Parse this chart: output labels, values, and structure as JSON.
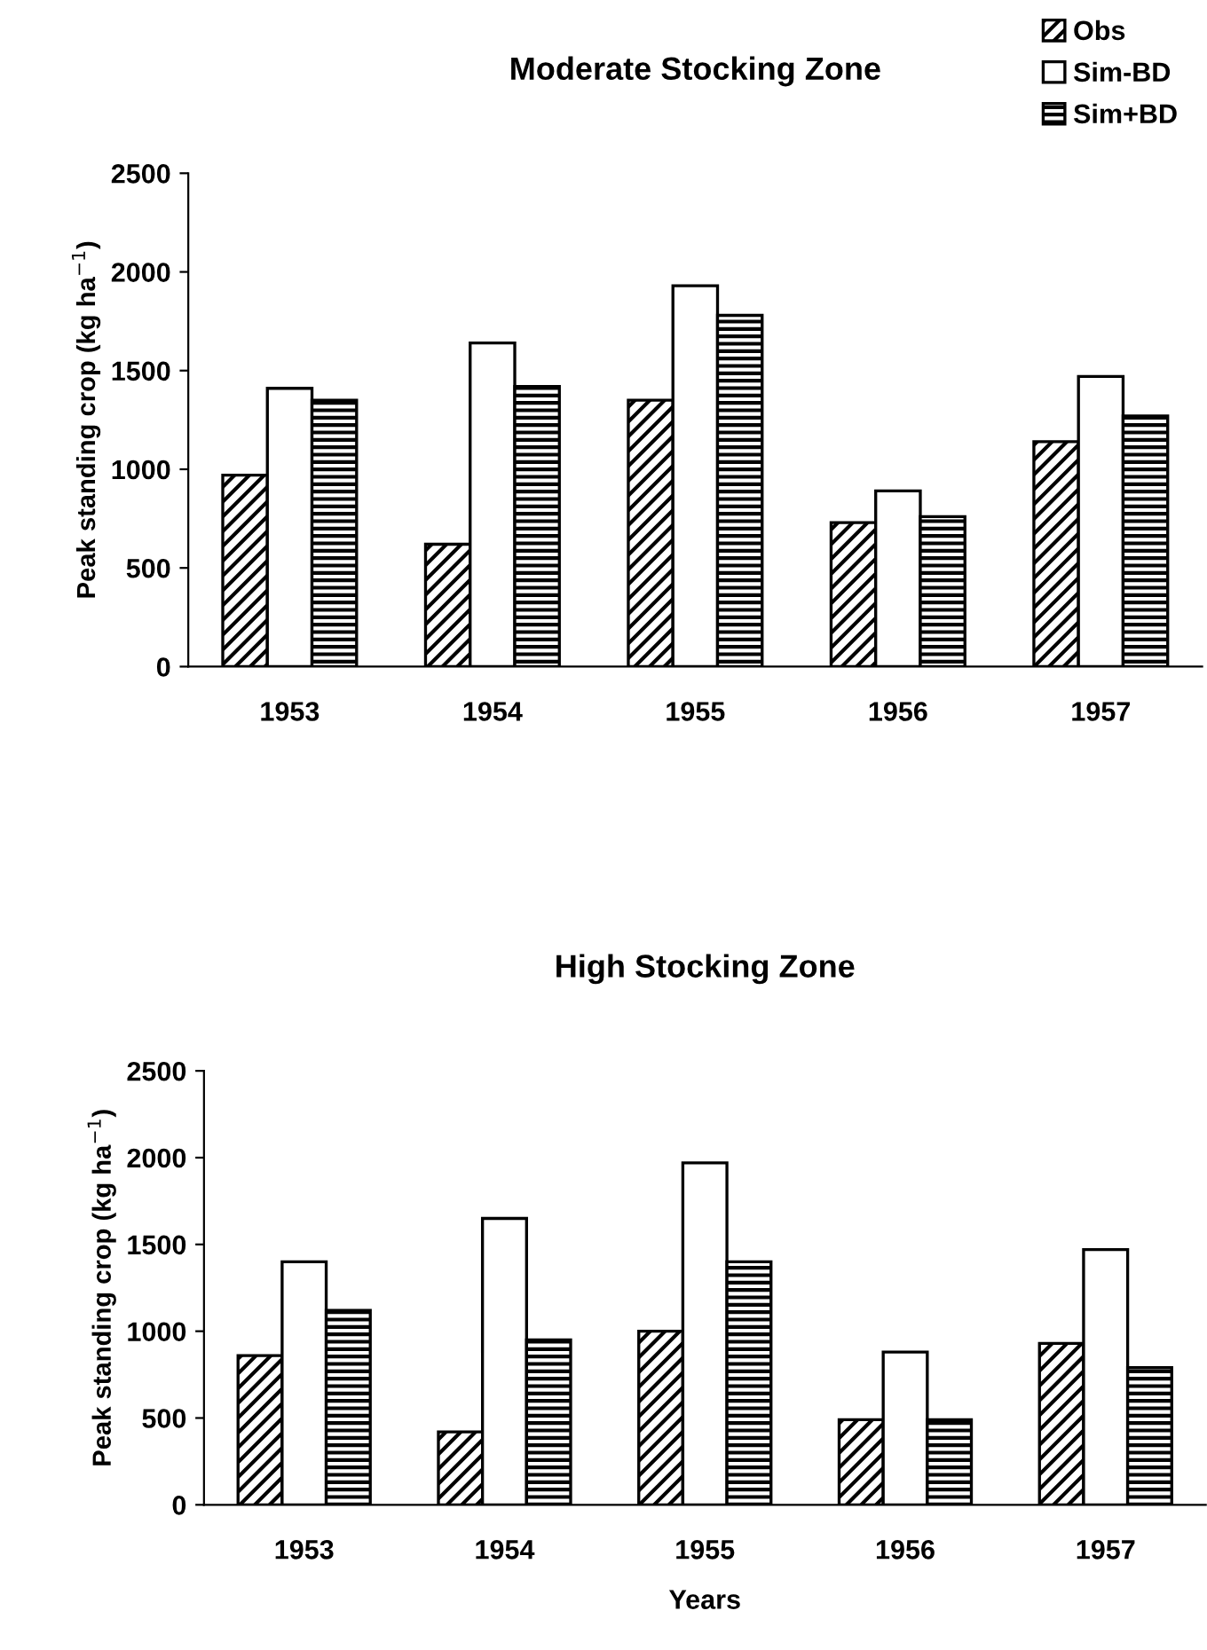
{
  "chart_data": [
    {
      "type": "bar",
      "title": "Moderate Stocking Zone",
      "ylabel": "Peak standing crop (kg ha$^{−1}$)",
      "categories": [
        "1953",
        "1954",
        "1955",
        "1956",
        "1957"
      ],
      "series": [
        {
          "name": "Obs",
          "color": "#000000",
          "values": [
            970,
            620,
            1350,
            730,
            1140
          ]
        },
        {
          "name": "Sim-BD",
          "color": "#ffffff",
          "values": [
            1410,
            1640,
            1930,
            890,
            1470
          ]
        },
        {
          "name": "Sim+BD",
          "color": "#000000",
          "values": [
            1350,
            1420,
            1780,
            760,
            1270
          ]
        }
      ],
      "ylim": [
        0,
        2500
      ],
      "yticks": [
        0,
        500,
        1000,
        1500,
        2000,
        2500
      ],
      "grid": false,
      "legend": "top right"
    },
    {
      "type": "bar",
      "title": "High Stocking Zone",
      "ylabel": "Peak standing crop (kg ha$^{−1}$)",
      "xlabel": "Years",
      "categories": [
        "1953",
        "1954",
        "1955",
        "1956",
        "1957"
      ],
      "series": [
        {
          "color": "#000000",
          "values": [
            860,
            420,
            1000,
            490,
            930
          ]
        },
        {
          "color": "#ffffff",
          "values": [
            1400,
            1650,
            1970,
            880,
            1470
          ]
        },
        {
          "color": "#000000",
          "values": [
            1120,
            950,
            1400,
            490,
            790
          ]
        }
      ],
      "ylim": [
        0,
        2500
      ],
      "yticks": [
        0,
        500,
        1000,
        1500,
        2000,
        2500
      ],
      "grid": false,
      "legend": false
    }
  ]
}
